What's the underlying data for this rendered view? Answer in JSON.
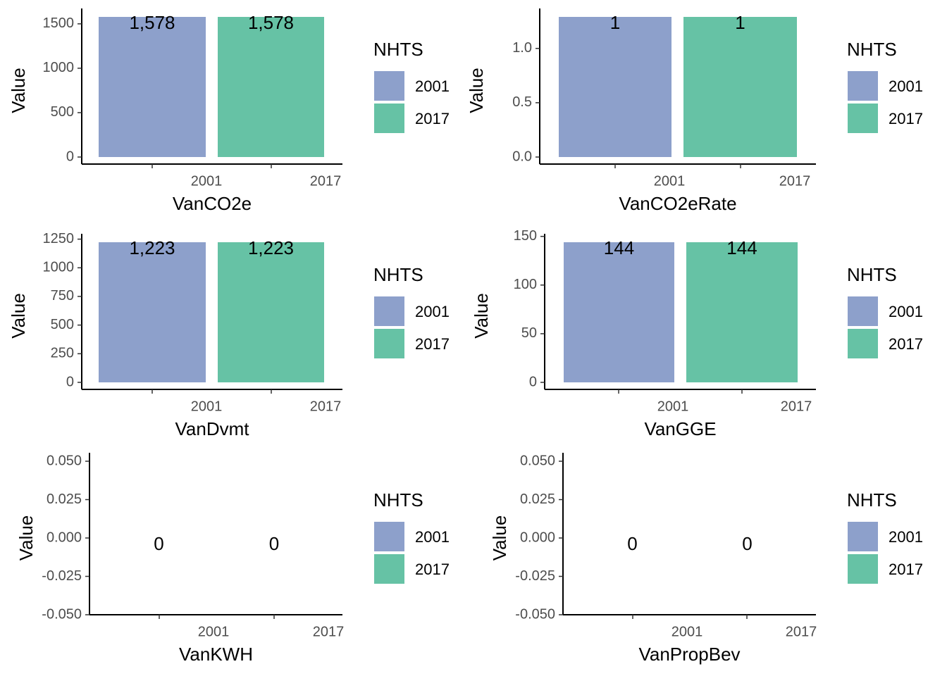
{
  "chart_data": [
    {
      "type": "bar",
      "categories": [
        "2001",
        "2017"
      ],
      "values": [
        1578,
        1578
      ],
      "data_labels": [
        "1,578",
        "1,578"
      ],
      "xlabel": "VanCO2e",
      "ylabel": "Value",
      "ylim": [
        0,
        1578
      ],
      "yticks": [
        0,
        500,
        1000,
        1500
      ],
      "ytick_labels": [
        "0",
        "500",
        "1000",
        "1500"
      ],
      "legend_title": "NHTS",
      "series_colors": [
        "#8da0cb",
        "#66c2a5"
      ]
    },
    {
      "type": "bar",
      "categories": [
        "2001",
        "2017"
      ],
      "values": [
        1.29,
        1.29
      ],
      "data_labels": [
        "1",
        "1"
      ],
      "xlabel": "VanCO2eRate",
      "ylabel": "Value",
      "ylim": [
        0,
        1.29
      ],
      "yticks": [
        0,
        0.5,
        1.0
      ],
      "ytick_labels": [
        "0.0",
        "0.5",
        "1.0"
      ],
      "legend_title": "NHTS",
      "series_colors": [
        "#8da0cb",
        "#66c2a5"
      ]
    },
    {
      "type": "bar",
      "categories": [
        "2001",
        "2017"
      ],
      "values": [
        1223,
        1223
      ],
      "data_labels": [
        "1,223",
        "1,223"
      ],
      "xlabel": "VanDvmt",
      "ylabel": "Value",
      "ylim": [
        0,
        1223
      ],
      "yticks": [
        0,
        250,
        500,
        750,
        1000,
        1250
      ],
      "ytick_labels": [
        "0",
        "250",
        "500",
        "750",
        "1000",
        "1250"
      ],
      "legend_title": "NHTS",
      "series_colors": [
        "#8da0cb",
        "#66c2a5"
      ]
    },
    {
      "type": "bar",
      "categories": [
        "2001",
        "2017"
      ],
      "values": [
        144,
        144
      ],
      "data_labels": [
        "144",
        "144"
      ],
      "xlabel": "VanGGE",
      "ylabel": "Value",
      "ylim": [
        0,
        144
      ],
      "yticks": [
        0,
        50,
        100,
        150
      ],
      "ytick_labels": [
        "0",
        "50",
        "100",
        "150"
      ],
      "legend_title": "NHTS",
      "series_colors": [
        "#8da0cb",
        "#66c2a5"
      ]
    },
    {
      "type": "bar",
      "categories": [
        "2001",
        "2017"
      ],
      "values": [
        0,
        0
      ],
      "data_labels": [
        "0",
        "0"
      ],
      "xlabel": "VanKWH",
      "ylabel": "Value",
      "ylim": [
        -0.05,
        0.05
      ],
      "yticks": [
        -0.05,
        -0.025,
        0,
        0.025,
        0.05
      ],
      "ytick_labels": [
        "-0.050",
        "-0.025",
        "0.000",
        "0.025",
        "0.050"
      ],
      "legend_title": "NHTS",
      "series_colors": [
        "#8da0cb",
        "#66c2a5"
      ]
    },
    {
      "type": "bar",
      "categories": [
        "2001",
        "2017"
      ],
      "values": [
        0,
        0
      ],
      "data_labels": [
        "0",
        "0"
      ],
      "xlabel": "VanPropBev",
      "ylabel": "Value",
      "ylim": [
        -0.05,
        0.05
      ],
      "yticks": [
        -0.05,
        -0.025,
        0,
        0.025,
        0.05
      ],
      "ytick_labels": [
        "-0.050",
        "-0.025",
        "0.000",
        "0.025",
        "0.050"
      ],
      "legend_title": "NHTS",
      "series_colors": [
        "#8da0cb",
        "#66c2a5"
      ]
    }
  ]
}
